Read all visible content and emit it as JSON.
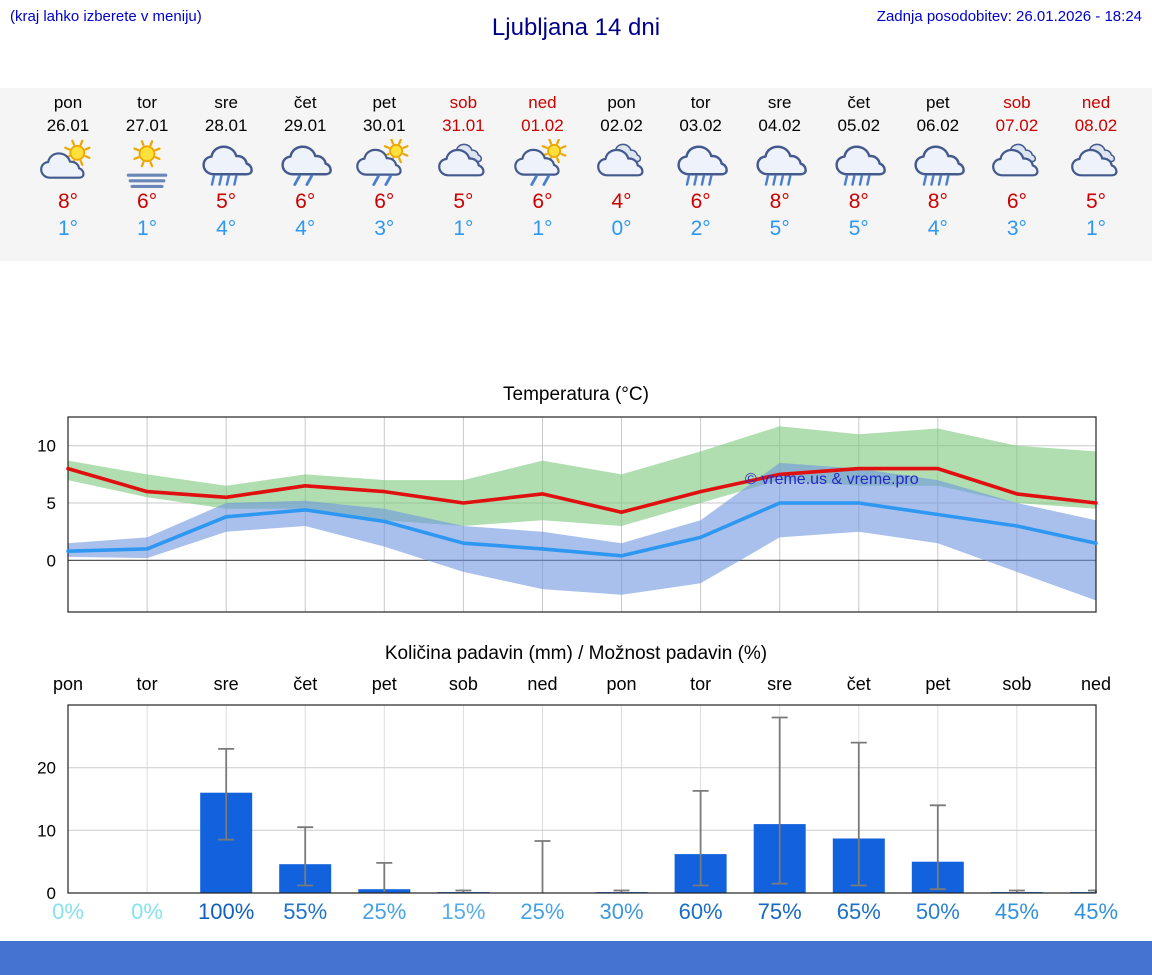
{
  "header": {
    "menu_hint": "(kraj lahko izberete v meniju)",
    "title": "Ljubljana 14 dni",
    "last_update": "Zadnja posodobitev: 26.01.2026 - 18:24"
  },
  "watermark": "© vreme.us & vreme.pro",
  "colors": {
    "link_blue": "#0000cc",
    "title_blue": "#00008b",
    "weekend_red": "#cc0000",
    "high_temp_red": "#cc0000",
    "low_temp_blue": "#2e97f2",
    "strip_background": "#f5f5f5",
    "bar_blue": "#1262dd",
    "footer_blue": "#4573d2",
    "watermark_blue": "#2525cc",
    "max_band_green": "#7cc87c",
    "min_band_blue": "#6f96e0"
  },
  "forecast_strip": {
    "days": [
      {
        "name": "pon",
        "date": "26.01",
        "weekend": false,
        "icon": "sun-cloud",
        "high": "8°",
        "low": "1°"
      },
      {
        "name": "tor",
        "date": "27.01",
        "weekend": false,
        "icon": "sun-fog",
        "high": "6°",
        "low": "1°"
      },
      {
        "name": "sre",
        "date": "28.01",
        "weekend": false,
        "icon": "rain",
        "high": "5°",
        "low": "4°"
      },
      {
        "name": "čet",
        "date": "29.01",
        "weekend": false,
        "icon": "showers",
        "high": "6°",
        "low": "4°"
      },
      {
        "name": "pet",
        "date": "30.01",
        "weekend": false,
        "icon": "sun-showers",
        "high": "6°",
        "low": "3°"
      },
      {
        "name": "sob",
        "date": "31.01",
        "weekend": true,
        "icon": "cloudy",
        "high": "5°",
        "low": "1°"
      },
      {
        "name": "ned",
        "date": "01.02",
        "weekend": true,
        "icon": "sun-showers",
        "high": "6°",
        "low": "1°"
      },
      {
        "name": "pon",
        "date": "02.02",
        "weekend": false,
        "icon": "cloudy",
        "high": "4°",
        "low": "0°"
      },
      {
        "name": "tor",
        "date": "03.02",
        "weekend": false,
        "icon": "rain",
        "high": "6°",
        "low": "2°"
      },
      {
        "name": "sre",
        "date": "04.02",
        "weekend": false,
        "icon": "rain",
        "high": "8°",
        "low": "5°"
      },
      {
        "name": "čet",
        "date": "05.02",
        "weekend": false,
        "icon": "rain",
        "high": "8°",
        "low": "5°"
      },
      {
        "name": "pet",
        "date": "06.02",
        "weekend": false,
        "icon": "rain",
        "high": "8°",
        "low": "4°"
      },
      {
        "name": "sob",
        "date": "07.02",
        "weekend": true,
        "icon": "cloudy",
        "high": "6°",
        "low": "3°"
      },
      {
        "name": "ned",
        "date": "08.02",
        "weekend": true,
        "icon": "cloudy",
        "high": "5°",
        "low": "1°"
      }
    ]
  },
  "chart_data": [
    {
      "type": "line",
      "title": "Temperatura (°C)",
      "categories": [
        "pon",
        "tor",
        "sre",
        "čet",
        "pet",
        "sob",
        "ned",
        "pon",
        "tor",
        "sre",
        "čet",
        "pet",
        "sob",
        "ned"
      ],
      "ylim": [
        -4.5,
        12.5
      ],
      "yticks": [
        0,
        5,
        10
      ],
      "grid": true,
      "legend": "none",
      "series": [
        {
          "name": "max-temp",
          "color": "#e01010",
          "values": [
            8,
            6,
            5.5,
            6.5,
            6,
            5,
            5.8,
            4.2,
            6,
            7.5,
            8,
            8,
            5.8,
            5
          ]
        },
        {
          "name": "min-temp",
          "color": "#2e97f2",
          "values": [
            0.8,
            1,
            3.8,
            4.4,
            3.4,
            1.5,
            1,
            0.4,
            2,
            5,
            5,
            4,
            3,
            1.5
          ]
        }
      ],
      "bands": [
        {
          "name": "max-range",
          "color": "#7cc87c",
          "upper": [
            8.7,
            7.5,
            6.5,
            7.5,
            7,
            7,
            8.7,
            7.5,
            9.5,
            11.7,
            11,
            11.5,
            10,
            9.5
          ],
          "lower": [
            7,
            5.5,
            4.5,
            4.5,
            3.5,
            3,
            3.5,
            3,
            5,
            7,
            6.5,
            6.5,
            5,
            4.5
          ]
        },
        {
          "name": "min-range",
          "color": "#6f96e0",
          "upper": [
            1.5,
            2,
            5,
            5.2,
            4.5,
            3,
            2.5,
            1.5,
            3.5,
            8.5,
            8,
            7,
            5,
            3.5
          ],
          "lower": [
            0.3,
            0.2,
            2.5,
            3,
            1.2,
            -1,
            -2.5,
            -3,
            -2,
            2,
            2.5,
            1.5,
            -1,
            -3.5
          ]
        }
      ]
    },
    {
      "type": "bar",
      "title": "Količina padavin (mm) / Možnost padavin (%)",
      "categories": [
        "pon",
        "tor",
        "sre",
        "čet",
        "pet",
        "sob",
        "ned",
        "pon",
        "tor",
        "sre",
        "čet",
        "pet",
        "sob",
        "ned"
      ],
      "ylim": [
        0,
        30
      ],
      "yticks": [
        0,
        10,
        20
      ],
      "bar_color": "#1262dd",
      "values": [
        0,
        0,
        16,
        4.6,
        0.6,
        0.15,
        0,
        0.15,
        6.2,
        11,
        8.7,
        5,
        0.15,
        0.15
      ],
      "whisker_low": [
        0,
        0,
        8.5,
        1.2,
        0.1,
        0,
        0,
        0,
        1.2,
        1.5,
        1.2,
        0.6,
        0,
        0
      ],
      "whisker_high": [
        0,
        0,
        23,
        10.5,
        4.8,
        0.4,
        8.3,
        0.4,
        16.3,
        28,
        24,
        14,
        0.4,
        0.4
      ],
      "probabilities": [
        {
          "label": "0%",
          "color": "#85e2f0"
        },
        {
          "label": "0%",
          "color": "#85e2f0"
        },
        {
          "label": "100%",
          "color": "#1160be"
        },
        {
          "label": "55%",
          "color": "#1f73cc"
        },
        {
          "label": "25%",
          "color": "#47a2e4"
        },
        {
          "label": "15%",
          "color": "#55aee8"
        },
        {
          "label": "25%",
          "color": "#47a2e4"
        },
        {
          "label": "30%",
          "color": "#3e97df"
        },
        {
          "label": "60%",
          "color": "#1b6fc9"
        },
        {
          "label": "75%",
          "color": "#1767c4"
        },
        {
          "label": "65%",
          "color": "#1b6fc9"
        },
        {
          "label": "50%",
          "color": "#2a7fd2"
        },
        {
          "label": "45%",
          "color": "#3390da"
        },
        {
          "label": "45%",
          "color": "#3390da"
        }
      ]
    }
  ]
}
